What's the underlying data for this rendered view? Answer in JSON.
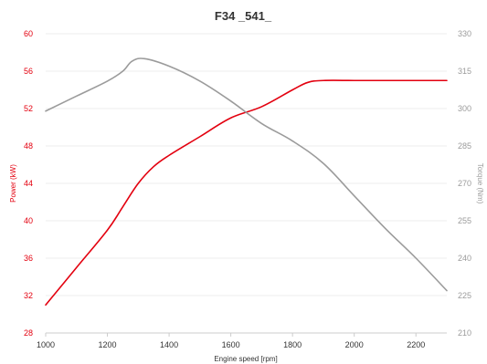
{
  "chart_data": {
    "type": "line",
    "title": "F34 _541_",
    "xlabel": "Engine speed [rpm]",
    "ylabel_left": "Power (kW)",
    "ylabel_right": "Torque (Nm)",
    "xlim": [
      1000,
      2300
    ],
    "ylim_left": [
      28,
      60
    ],
    "ylim_right": [
      210,
      330
    ],
    "x_ticks": [
      "1000",
      "1200",
      "1400",
      "1600",
      "1800",
      "2000",
      "2200"
    ],
    "y_ticks_left": [
      "28",
      "32",
      "36",
      "40",
      "44",
      "48",
      "52",
      "56",
      "60"
    ],
    "y_ticks_right": [
      "210",
      "225",
      "240",
      "255",
      "270",
      "285",
      "300",
      "315",
      "330"
    ],
    "grid": true,
    "colors": {
      "power": "#e3000f",
      "torque": "#9b9b9b"
    },
    "series": [
      {
        "axis": "left",
        "color": "#e3000f",
        "points": [
          [
            1000,
            31.0
          ],
          [
            1100,
            35.0
          ],
          [
            1200,
            39.0
          ],
          [
            1250,
            41.5
          ],
          [
            1300,
            44.0
          ],
          [
            1350,
            45.8
          ],
          [
            1400,
            47.0
          ],
          [
            1500,
            49.0
          ],
          [
            1600,
            51.0
          ],
          [
            1700,
            52.2
          ],
          [
            1800,
            54.0
          ],
          [
            1850,
            54.8
          ],
          [
            1900,
            55.0
          ],
          [
            2000,
            55.0
          ],
          [
            2100,
            55.0
          ],
          [
            2200,
            55.0
          ],
          [
            2300,
            55.0
          ]
        ]
      },
      {
        "axis": "right",
        "color": "#9b9b9b",
        "points": [
          [
            1000,
            299
          ],
          [
            1100,
            305
          ],
          [
            1200,
            311
          ],
          [
            1250,
            315
          ],
          [
            1280,
            319
          ],
          [
            1320,
            320
          ],
          [
            1400,
            317
          ],
          [
            1500,
            311
          ],
          [
            1600,
            303
          ],
          [
            1700,
            294
          ],
          [
            1800,
            287
          ],
          [
            1900,
            278
          ],
          [
            2000,
            265
          ],
          [
            2100,
            252
          ],
          [
            2200,
            240
          ],
          [
            2300,
            227
          ]
        ]
      }
    ]
  }
}
